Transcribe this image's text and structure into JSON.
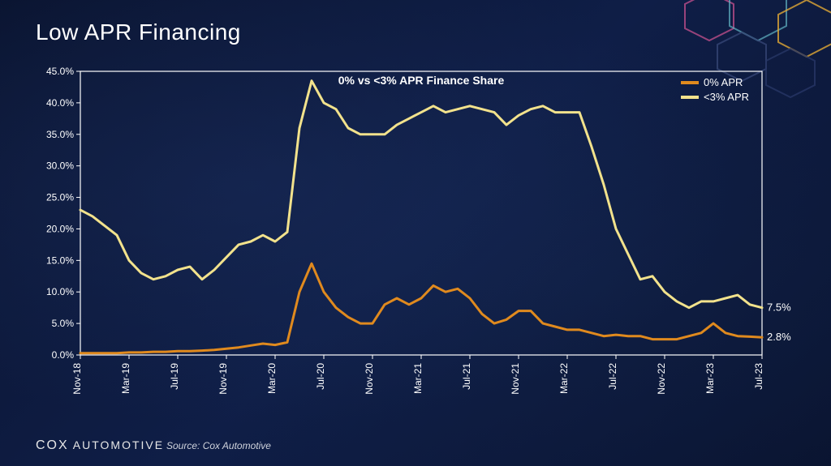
{
  "slide": {
    "title": "Low APR Financing",
    "brand_cox": "COX",
    "brand_auto": " AUTOMOTIVE",
    "source": "Source: Cox Automotive"
  },
  "chart": {
    "type": "line",
    "title": "0% vs <3% APR Finance Share",
    "title_fontsize": 14,
    "background_color": "transparent",
    "border_color": "#ffffff",
    "text_color": "#ffffff",
    "ylim": [
      0,
      45
    ],
    "ytick_step": 5,
    "ytick_format_suffix": "%",
    "ytick_format_decimal": 1,
    "xlabels": [
      "Nov-18",
      "Mar-19",
      "Jul-19",
      "Nov-19",
      "Mar-20",
      "Jul-20",
      "Nov-20",
      "Mar-21",
      "Jul-21",
      "Nov-21",
      "Mar-22",
      "Jul-22",
      "Nov-22",
      "Mar-23",
      "Jul-23"
    ],
    "x_index_max": 56,
    "legend": {
      "items": [
        {
          "label": "0% APR",
          "color": "#e08a1e"
        },
        {
          "label": "<3% APR",
          "color": "#f2e28c"
        }
      ]
    },
    "series": [
      {
        "name": "<3% APR",
        "color": "#f2e28c",
        "line_width": 3,
        "end_label": "7.5%",
        "points": [
          23.0,
          22.0,
          20.5,
          19.0,
          15.0,
          13.0,
          12.0,
          12.5,
          13.5,
          14.0,
          12.0,
          13.5,
          15.5,
          17.5,
          18.0,
          19.0,
          18.0,
          19.5,
          36.0,
          43.5,
          40.0,
          39.0,
          36.0,
          35.0,
          35.0,
          35.0,
          36.5,
          37.5,
          38.5,
          39.5,
          38.5,
          39.0,
          39.5,
          39.0,
          38.5,
          36.5,
          38.0,
          39.0,
          39.5,
          38.5,
          38.5,
          38.5,
          33.0,
          27.0,
          20.0,
          16.0,
          12.0,
          12.5,
          10.0,
          8.5,
          7.5,
          8.5,
          8.5,
          9.0,
          9.5,
          8.0,
          7.5
        ]
      },
      {
        "name": "0% APR",
        "color": "#e08a1e",
        "line_width": 3,
        "end_label": "2.8%",
        "points": [
          0.3,
          0.3,
          0.3,
          0.3,
          0.4,
          0.4,
          0.5,
          0.5,
          0.6,
          0.6,
          0.7,
          0.8,
          1.0,
          1.2,
          1.5,
          1.8,
          1.6,
          2.0,
          10.0,
          14.5,
          10.0,
          7.5,
          6.0,
          5.0,
          5.0,
          8.0,
          9.0,
          8.0,
          9.0,
          11.0,
          10.0,
          10.5,
          9.0,
          6.5,
          5.0,
          5.6,
          7.0,
          7.0,
          5.0,
          4.5,
          4.0,
          4.0,
          3.5,
          3.0,
          3.2,
          3.0,
          3.0,
          2.5,
          2.5,
          2.5,
          3.0,
          3.5,
          5.0,
          3.5,
          3.0,
          2.9,
          2.8
        ]
      }
    ]
  },
  "decor": {
    "hex_colors": [
      "#f7b733",
      "#6bc5d2",
      "#e85a9b",
      "#3a4a7a",
      "#2a3a6a"
    ]
  }
}
